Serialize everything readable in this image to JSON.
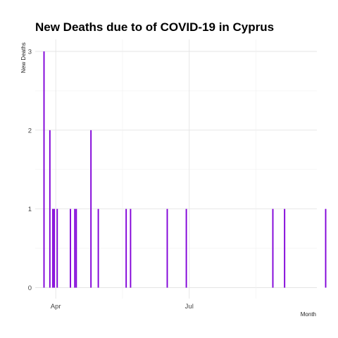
{
  "chart_data": {
    "type": "bar",
    "title": "New Deaths due to of COVID-19 in Cyprus",
    "xlabel": "Month",
    "ylabel": "New Deaths",
    "x_ticks": [
      {
        "label": "Apr",
        "date": "2020-04-01"
      },
      {
        "label": "Jul",
        "date": "2020-07-01"
      }
    ],
    "y_ticks": [
      0,
      1,
      2,
      3
    ],
    "ylim": [
      0,
      3
    ],
    "xlim": [
      "2020-03-18",
      "2020-09-26"
    ],
    "grid": true,
    "bar_color": "#8000d8",
    "series": [
      {
        "x": [
          "2020-03-24",
          "2020-03-28",
          "2020-03-30",
          "2020-03-31",
          "2020-04-02",
          "2020-04-11",
          "2020-04-14",
          "2020-04-15",
          "2020-04-25",
          "2020-04-30",
          "2020-05-19",
          "2020-05-22",
          "2020-06-16",
          "2020-06-29",
          "2020-08-27",
          "2020-09-04",
          "2020-10-02"
        ],
        "values": [
          3,
          2,
          1,
          1,
          1,
          1,
          1,
          1,
          2,
          1,
          1,
          1,
          1,
          1,
          1,
          1,
          1
        ]
      }
    ]
  }
}
